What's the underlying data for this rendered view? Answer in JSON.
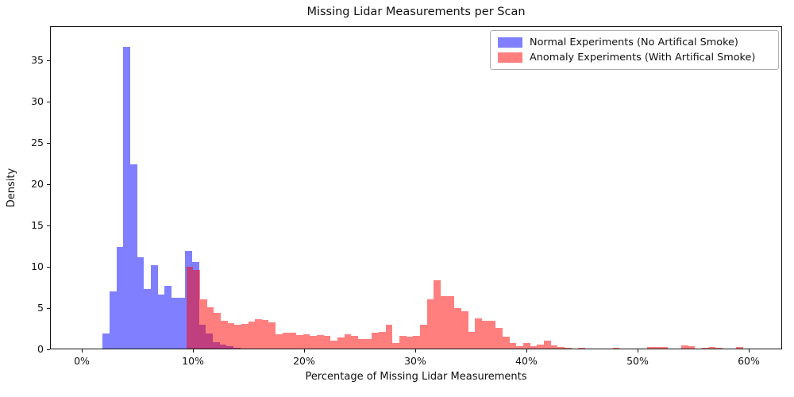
{
  "title": "Missing Lidar Measurements per Scan",
  "xlabel": "Percentage of Missing Lidar Measurements",
  "ylabel": "Density",
  "legend": {
    "position": "upper right",
    "items": [
      {
        "label": "Normal Experiments (No Artifical Smoke)",
        "color": "rgba(0,0,255,0.5)",
        "color_hex_on_white": "#8080ff"
      },
      {
        "label": "Anomaly Experiments (With Artifical Smoke)",
        "color": "rgba(255,0,0,0.5)",
        "color_hex_on_white": "#ff8080"
      }
    ]
  },
  "chart_data": {
    "type": "bar",
    "subtype": "overlapping-density-histogram",
    "title": "Missing Lidar Measurements per Scan",
    "xlabel": "Percentage of Missing Lidar Measurements",
    "ylabel": "Density",
    "grid": false,
    "legend_position": "upper right",
    "xlim": [
      -2.86,
      63.0
    ],
    "ylim": [
      0,
      39.1
    ],
    "x_ticks": [
      {
        "value": 0,
        "label": "0%"
      },
      {
        "value": 10,
        "label": "10%"
      },
      {
        "value": 20,
        "label": "20%"
      },
      {
        "value": 30,
        "label": "30%"
      },
      {
        "value": 40,
        "label": "40%"
      },
      {
        "value": 50,
        "label": "50%"
      },
      {
        "value": 60,
        "label": "60%"
      }
    ],
    "y_ticks": [
      {
        "value": 0,
        "label": "0"
      },
      {
        "value": 5,
        "label": "5"
      },
      {
        "value": 10,
        "label": "10"
      },
      {
        "value": 15,
        "label": "15"
      },
      {
        "value": 20,
        "label": "20"
      },
      {
        "value": 25,
        "label": "25"
      },
      {
        "value": 30,
        "label": "30"
      },
      {
        "value": 35,
        "label": "35"
      }
    ],
    "series": [
      {
        "name": "Normal Experiments (No Artifical Smoke)",
        "color": "rgba(0,0,255,0.5)",
        "bin_start_percent": 1.82,
        "bin_width_percent": 0.62,
        "densities": [
          1.85,
          7.0,
          12.35,
          36.7,
          22.4,
          11.1,
          7.2,
          10.15,
          6.6,
          7.6,
          6.2,
          6.15,
          11.9,
          10.5,
          2.9,
          1.8,
          0.8,
          0.45,
          0.25,
          0.1
        ]
      },
      {
        "name": "Anomaly Experiments (With Artifical Smoke)",
        "color": "rgba(255,0,0,0.5)",
        "bin_start_percent": 9.35,
        "bin_width_percent": 0.62,
        "densities": [
          9.9,
          9.6,
          6.0,
          5.0,
          4.3,
          3.4,
          3.1,
          2.9,
          3.0,
          3.3,
          3.6,
          3.5,
          3.2,
          1.75,
          1.9,
          1.9,
          1.6,
          1.75,
          1.5,
          1.6,
          1.5,
          0.95,
          1.4,
          1.75,
          1.5,
          1.2,
          1.2,
          1.9,
          2.0,
          2.9,
          0.65,
          1.5,
          1.45,
          1.55,
          2.9,
          5.95,
          8.3,
          6.4,
          6.35,
          4.9,
          4.55,
          2.0,
          3.7,
          3.35,
          3.35,
          2.55,
          1.45,
          0.65,
          0.3,
          0.65,
          0.3,
          0.5,
          0.95,
          0.35,
          0.15,
          0.05,
          0,
          0.12,
          0,
          0,
          0,
          0,
          0.12,
          0,
          0,
          0,
          0,
          0.15,
          0.18,
          0.15,
          0,
          0,
          0.4,
          0.3,
          0,
          0.12,
          0.15,
          0.1,
          0,
          0,
          0.2,
          0
        ]
      }
    ]
  }
}
